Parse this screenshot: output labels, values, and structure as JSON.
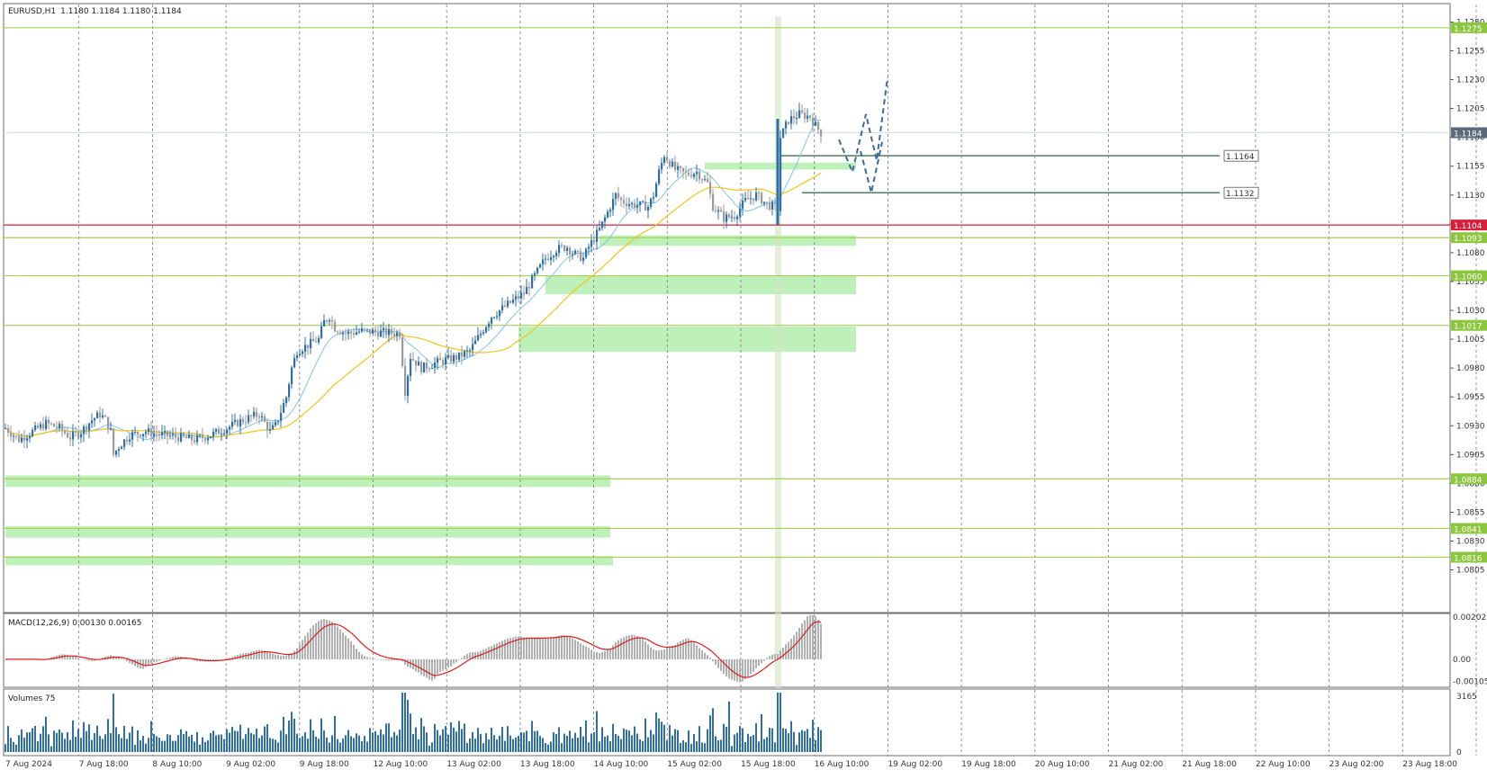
{
  "header": {
    "symbol": "EURUSD,H1",
    "ohlc": "1.1180 1.1184 1.1180 1.1184"
  },
  "colors": {
    "bull": "#2f6fa8",
    "bear": "#9a9a9a",
    "ma_fast": "#7fc4ea",
    "ma_slow": "#f0c419",
    "zone_fill": "#b7f0b1",
    "level_line": "#a6cf56",
    "current_line": "#d91e3c",
    "macd_hist": "#b0b0b0",
    "macd_signal": "#e01b1b",
    "volume": "#2f6fa8",
    "forecast": "#3b6aa0"
  },
  "chart_data": {
    "type": "candlestick",
    "price_axis": {
      "range": [
        1.08,
        1.1285
      ],
      "ticks": [
        "1.1280",
        "1.1255",
        "1.1230",
        "1.1205",
        "1.1180",
        "1.1155",
        "1.1130",
        "1.1105",
        "1.1080",
        "1.1055",
        "1.1030",
        "1.1005",
        "1.0980",
        "1.0955",
        "1.0930",
        "1.0905",
        "1.0880",
        "1.0855",
        "1.0830",
        "1.0805"
      ]
    },
    "time_labels": [
      "7 Aug 2024",
      "7 Aug 18:00",
      "8 Aug 10:00",
      "9 Aug 02:00",
      "9 Aug 18:00",
      "12 Aug 10:00",
      "13 Aug 02:00",
      "13 Aug 18:00",
      "14 Aug 10:00",
      "15 Aug 02:00",
      "15 Aug 18:00",
      "16 Aug 10:00",
      "19 Aug 02:00",
      "19 Aug 18:00",
      "20 Aug 10:00",
      "21 Aug 02:00",
      "21 Aug 18:00",
      "22 Aug 10:00",
      "23 Aug 02:00",
      "23 Aug 18:00"
    ],
    "path_points": [
      [
        0,
        1.0928
      ],
      [
        5,
        1.0918
      ],
      [
        10,
        1.0925
      ],
      [
        15,
        1.0932
      ],
      [
        20,
        1.0928
      ],
      [
        24,
        1.092
      ],
      [
        28,
        1.0925
      ],
      [
        32,
        1.0935
      ],
      [
        35,
        1.094
      ],
      [
        37,
        1.0935
      ],
      [
        39,
        1.0925
      ],
      [
        40,
        1.0905
      ],
      [
        42,
        1.0912
      ],
      [
        46,
        1.0922
      ],
      [
        52,
        1.0925
      ],
      [
        58,
        1.0922
      ],
      [
        64,
        1.092
      ],
      [
        70,
        1.0918
      ],
      [
        76,
        1.0922
      ],
      [
        82,
        1.0928
      ],
      [
        88,
        1.0935
      ],
      [
        94,
        1.094
      ],
      [
        98,
        1.0925
      ],
      [
        100,
        1.093
      ],
      [
        104,
        1.0955
      ],
      [
        106,
        1.098
      ],
      [
        108,
        1.0995
      ],
      [
        112,
        1.1
      ],
      [
        116,
        1.1005
      ],
      [
        118,
        1.102
      ],
      [
        120,
        1.1025
      ],
      [
        122,
        1.1015
      ],
      [
        126,
        1.101
      ],
      [
        132,
        1.1012
      ],
      [
        146,
        1.101
      ],
      [
        148,
        1.096
      ],
      [
        150,
        1.099
      ],
      [
        154,
        1.098
      ],
      [
        160,
        1.0985
      ],
      [
        168,
        1.099
      ],
      [
        172,
        1.0995
      ],
      [
        176,
        1.101
      ],
      [
        180,
        1.1025
      ],
      [
        186,
        1.1035
      ],
      [
        192,
        1.1045
      ],
      [
        196,
        1.106
      ],
      [
        200,
        1.1075
      ],
      [
        204,
        1.1083
      ],
      [
        208,
        1.1085
      ],
      [
        210,
        1.108
      ],
      [
        214,
        1.1075
      ],
      [
        216,
        1.1085
      ],
      [
        220,
        1.11
      ],
      [
        224,
        1.112
      ],
      [
        226,
        1.113
      ],
      [
        228,
        1.1125
      ],
      [
        232,
        1.1122
      ],
      [
        238,
        1.112
      ],
      [
        240,
        1.113
      ],
      [
        242,
        1.115
      ],
      [
        244,
        1.1165
      ],
      [
        248,
        1.1152
      ],
      [
        252,
        1.1148
      ],
      [
        256,
        1.115
      ],
      [
        260,
        1.114
      ],
      [
        262,
        1.112
      ],
      [
        266,
        1.111
      ],
      [
        270,
        1.1112
      ],
      [
        274,
        1.1125
      ],
      [
        278,
        1.113
      ],
      [
        282,
        1.1122
      ],
      [
        286,
        1.1118
      ],
      [
        287,
        1.118
      ],
      [
        290,
        1.1195
      ],
      [
        294,
        1.12
      ],
      [
        298,
        1.1198
      ],
      [
        300,
        1.119
      ],
      [
        302,
        1.1184
      ]
    ],
    "zones": [
      {
        "from": 1.1158,
        "to": 1.1152,
        "x_start": 259,
        "x_end": 315
      },
      {
        "from": 1.1095,
        "to": 1.1086,
        "x_start": 220,
        "x_end": 315
      },
      {
        "from": 1.106,
        "to": 1.1044,
        "x_start": 200,
        "x_end": 315
      },
      {
        "from": 1.1016,
        "to": 1.0994,
        "x_start": 190,
        "x_end": 315
      },
      {
        "from": 1.0887,
        "to": 1.0877,
        "x_start": 0,
        "x_end": 224
      },
      {
        "from": 1.0843,
        "to": 1.0833,
        "x_start": 0,
        "x_end": 224
      },
      {
        "from": 1.0817,
        "to": 1.0809,
        "x_start": 0,
        "x_end": 225
      }
    ],
    "levels": [
      {
        "price": 1.1275,
        "label": "1.1275",
        "kind": "level"
      },
      {
        "price": 1.1104,
        "label": "1.1104",
        "kind": "current"
      },
      {
        "price": 1.1093,
        "label": "1.1093",
        "kind": "level"
      },
      {
        "price": 1.106,
        "label": "1.1060",
        "kind": "level"
      },
      {
        "price": 1.1017,
        "label": "1.1017",
        "kind": "level"
      },
      {
        "price": 1.0884,
        "label": "1.0884",
        "kind": "level"
      },
      {
        "price": 1.0841,
        "label": "1.0841",
        "kind": "level"
      },
      {
        "price": 1.0816,
        "label": "1.0816",
        "kind": "level"
      }
    ],
    "bid": {
      "price": 1.1184,
      "label": "1.1184"
    },
    "targets": [
      {
        "price": 1.1164,
        "label": "1.1164"
      },
      {
        "price": 1.1132,
        "label": "1.1132"
      }
    ],
    "forecast_paths": [
      [
        [
          302,
          1.1178
        ],
        [
          307,
          1.115
        ],
        [
          312,
          1.12
        ],
        [
          316,
          1.116
        ],
        [
          320,
          1.1232
        ]
      ],
      [
        [
          310,
          1.1168
        ],
        [
          314,
          1.1132
        ],
        [
          318,
          1.1176
        ]
      ]
    ],
    "macd": {
      "label": "MACD(12,26,9) 0.00130 0.00165",
      "axis": [
        "0.00202",
        "0.00",
        "-0.00105"
      ],
      "range": [
        -0.00125,
        0.0021
      ]
    },
    "volumes": {
      "label": "Volumes 75",
      "axis": [
        "3165",
        "0"
      ],
      "max": 3165
    }
  }
}
